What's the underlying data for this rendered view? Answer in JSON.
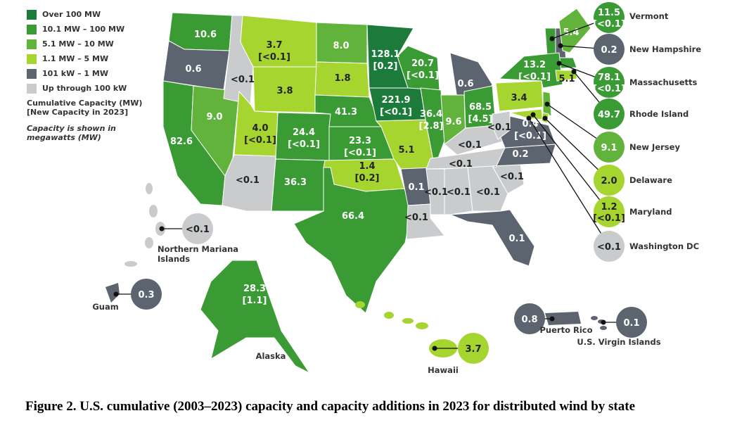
{
  "colors": {
    "over_100": "#1c7a3a",
    "r10_100": "#3a9a34",
    "r5_10": "#62b33c",
    "r1_5": "#a6d52f",
    "kw101_1mw": "#5c6470",
    "upto100kw": "#c9cbcd"
  },
  "legend": {
    "items": [
      {
        "label": "Over 100 MW",
        "color": "#1c7a3a"
      },
      {
        "label": "10.1 MW – 100 MW",
        "color": "#3a9a34"
      },
      {
        "label": "5.1 MW – 10 MW",
        "color": "#62b33c"
      },
      {
        "label": "1.1 MW – 5 MW",
        "color": "#a6d52f"
      },
      {
        "label": "101 kW – 1 MW",
        "color": "#5c6470"
      },
      {
        "label": "Up through 100 kW",
        "color": "#c9cbcd"
      }
    ],
    "note_line1": "Cumulative Capacity (MW)",
    "note_line2": "[New Capacity in 2023]",
    "italic_line1": "Capacity is shown in",
    "italic_line2": "megawatts (MW)"
  },
  "states": [
    {
      "state": "WA",
      "value": "10.6",
      "category": "r10_100"
    },
    {
      "state": "OR",
      "value": "0.6",
      "category": "kw101_1mw"
    },
    {
      "state": "CA",
      "value": "82.6",
      "category": "r10_100"
    },
    {
      "state": "NV",
      "value": "9.0",
      "category": "r5_10"
    },
    {
      "state": "ID",
      "value": "<0.1",
      "category": "upto100kw"
    },
    {
      "state": "MT",
      "value": "3.7",
      "new": "[<0.1]",
      "category": "r1_5"
    },
    {
      "state": "WY",
      "value": "3.8",
      "category": "r1_5"
    },
    {
      "state": "UT",
      "value": "4.0",
      "new": "[<0.1]",
      "category": "r1_5"
    },
    {
      "state": "AZ",
      "value": "<0.1",
      "category": "upto100kw"
    },
    {
      "state": "CO",
      "value": "24.4",
      "new": "[<0.1]",
      "category": "r10_100"
    },
    {
      "state": "NM",
      "value": "36.3",
      "category": "r10_100"
    },
    {
      "state": "ND",
      "value": "8.0",
      "category": "r5_10"
    },
    {
      "state": "SD",
      "value": "1.8",
      "category": "r1_5"
    },
    {
      "state": "NE",
      "value": "41.3",
      "category": "r10_100"
    },
    {
      "state": "KS",
      "value": "23.3",
      "new": "[<0.1]",
      "category": "r10_100"
    },
    {
      "state": "OK",
      "value": "1.4",
      "new": "[0.2]",
      "category": "r1_5"
    },
    {
      "state": "TX",
      "value": "66.4",
      "category": "r10_100"
    },
    {
      "state": "MN",
      "value": "128.1",
      "new": "[0.2]",
      "category": "over_100"
    },
    {
      "state": "IA",
      "value": "221.9",
      "new": "[<0.1]",
      "category": "over_100"
    },
    {
      "state": "MO",
      "value": "5.1",
      "category": "r1_5"
    },
    {
      "state": "AR",
      "value": "0.1",
      "category": "kw101_1mw"
    },
    {
      "state": "LA",
      "value": "<0.1",
      "category": "upto100kw"
    },
    {
      "state": "WI",
      "value": "20.7",
      "new": "[<0.1]",
      "category": "r10_100"
    },
    {
      "state": "IL",
      "value": "36.4",
      "new": "[2.8]",
      "category": "r10_100"
    },
    {
      "state": "MI",
      "value": "0.6",
      "category": "kw101_1mw"
    },
    {
      "state": "IN",
      "value": "9.6",
      "category": "r5_10"
    },
    {
      "state": "OH",
      "value": "68.5",
      "new": "[4.5]",
      "category": "r10_100"
    },
    {
      "state": "KY",
      "value": "<0.1",
      "category": "upto100kw"
    },
    {
      "state": "TN",
      "value": "<0.1",
      "category": "upto100kw"
    },
    {
      "state": "MS",
      "value": "<0.1",
      "category": "upto100kw"
    },
    {
      "state": "AL",
      "value": "<0.1",
      "category": "upto100kw"
    },
    {
      "state": "GA",
      "value": "<0.1",
      "category": "upto100kw"
    },
    {
      "state": "FL",
      "value": "0.1",
      "category": "kw101_1mw"
    },
    {
      "state": "SC",
      "value": "<0.1",
      "category": "upto100kw"
    },
    {
      "state": "NC",
      "value": "0.2",
      "category": "kw101_1mw"
    },
    {
      "state": "VA",
      "value": "0.4",
      "new": "[<0.1]",
      "category": "kw101_1mw"
    },
    {
      "state": "WV",
      "value": "<0.1",
      "category": "upto100kw"
    },
    {
      "state": "PA",
      "value": "3.4",
      "category": "r1_5"
    },
    {
      "state": "NY",
      "value": "13.2",
      "new": "[<0.1]",
      "category": "r10_100"
    },
    {
      "state": "ME",
      "value": "5.4",
      "category": "r5_10"
    },
    {
      "state": "CT",
      "value": "5.1",
      "category": "r1_5"
    },
    {
      "state": "AK",
      "value": "28.3",
      "new": "[1.1]",
      "category": "r10_100"
    }
  ],
  "callouts": [
    {
      "name": "Vermont",
      "value": "11.5",
      "new": "[<0.1]",
      "category": "r10_100"
    },
    {
      "name": "New Hampshire",
      "value": "0.2",
      "category": "kw101_1mw"
    },
    {
      "name": "Massachusetts",
      "value": "78.1",
      "new": "[<0.1]",
      "category": "r10_100"
    },
    {
      "name": "Rhode Island",
      "value": "49.7",
      "category": "r10_100"
    },
    {
      "name": "New Jersey",
      "value": "9.1",
      "category": "r5_10"
    },
    {
      "name": "Delaware",
      "value": "2.0",
      "category": "r1_5"
    },
    {
      "name": "Maryland",
      "value": "1.2",
      "new": "[<0.1]",
      "category": "r1_5"
    },
    {
      "name": "Washington DC",
      "value": "<0.1",
      "category": "upto100kw"
    },
    {
      "name": "Northern Mariana Islands",
      "value": "<0.1",
      "category": "upto100kw"
    },
    {
      "name": "Guam",
      "value": "0.3",
      "category": "kw101_1mw"
    },
    {
      "name": "Alaska",
      "category": "r10_100"
    },
    {
      "name": "Hawaii",
      "value": "3.7",
      "category": "r1_5"
    },
    {
      "name": "Puerto Rico",
      "value": "0.8",
      "category": "kw101_1mw"
    },
    {
      "name": "U.S. Virgin Islands",
      "value": "0.1",
      "category": "kw101_1mw"
    }
  ],
  "territory_labels": {
    "nmi_line1": "Northern Mariana",
    "nmi_line2": "Islands"
  },
  "caption": "Figure 2. U.S. cumulative (2003–2023) capacity and capacity additions in 2023 for distributed wind by state"
}
